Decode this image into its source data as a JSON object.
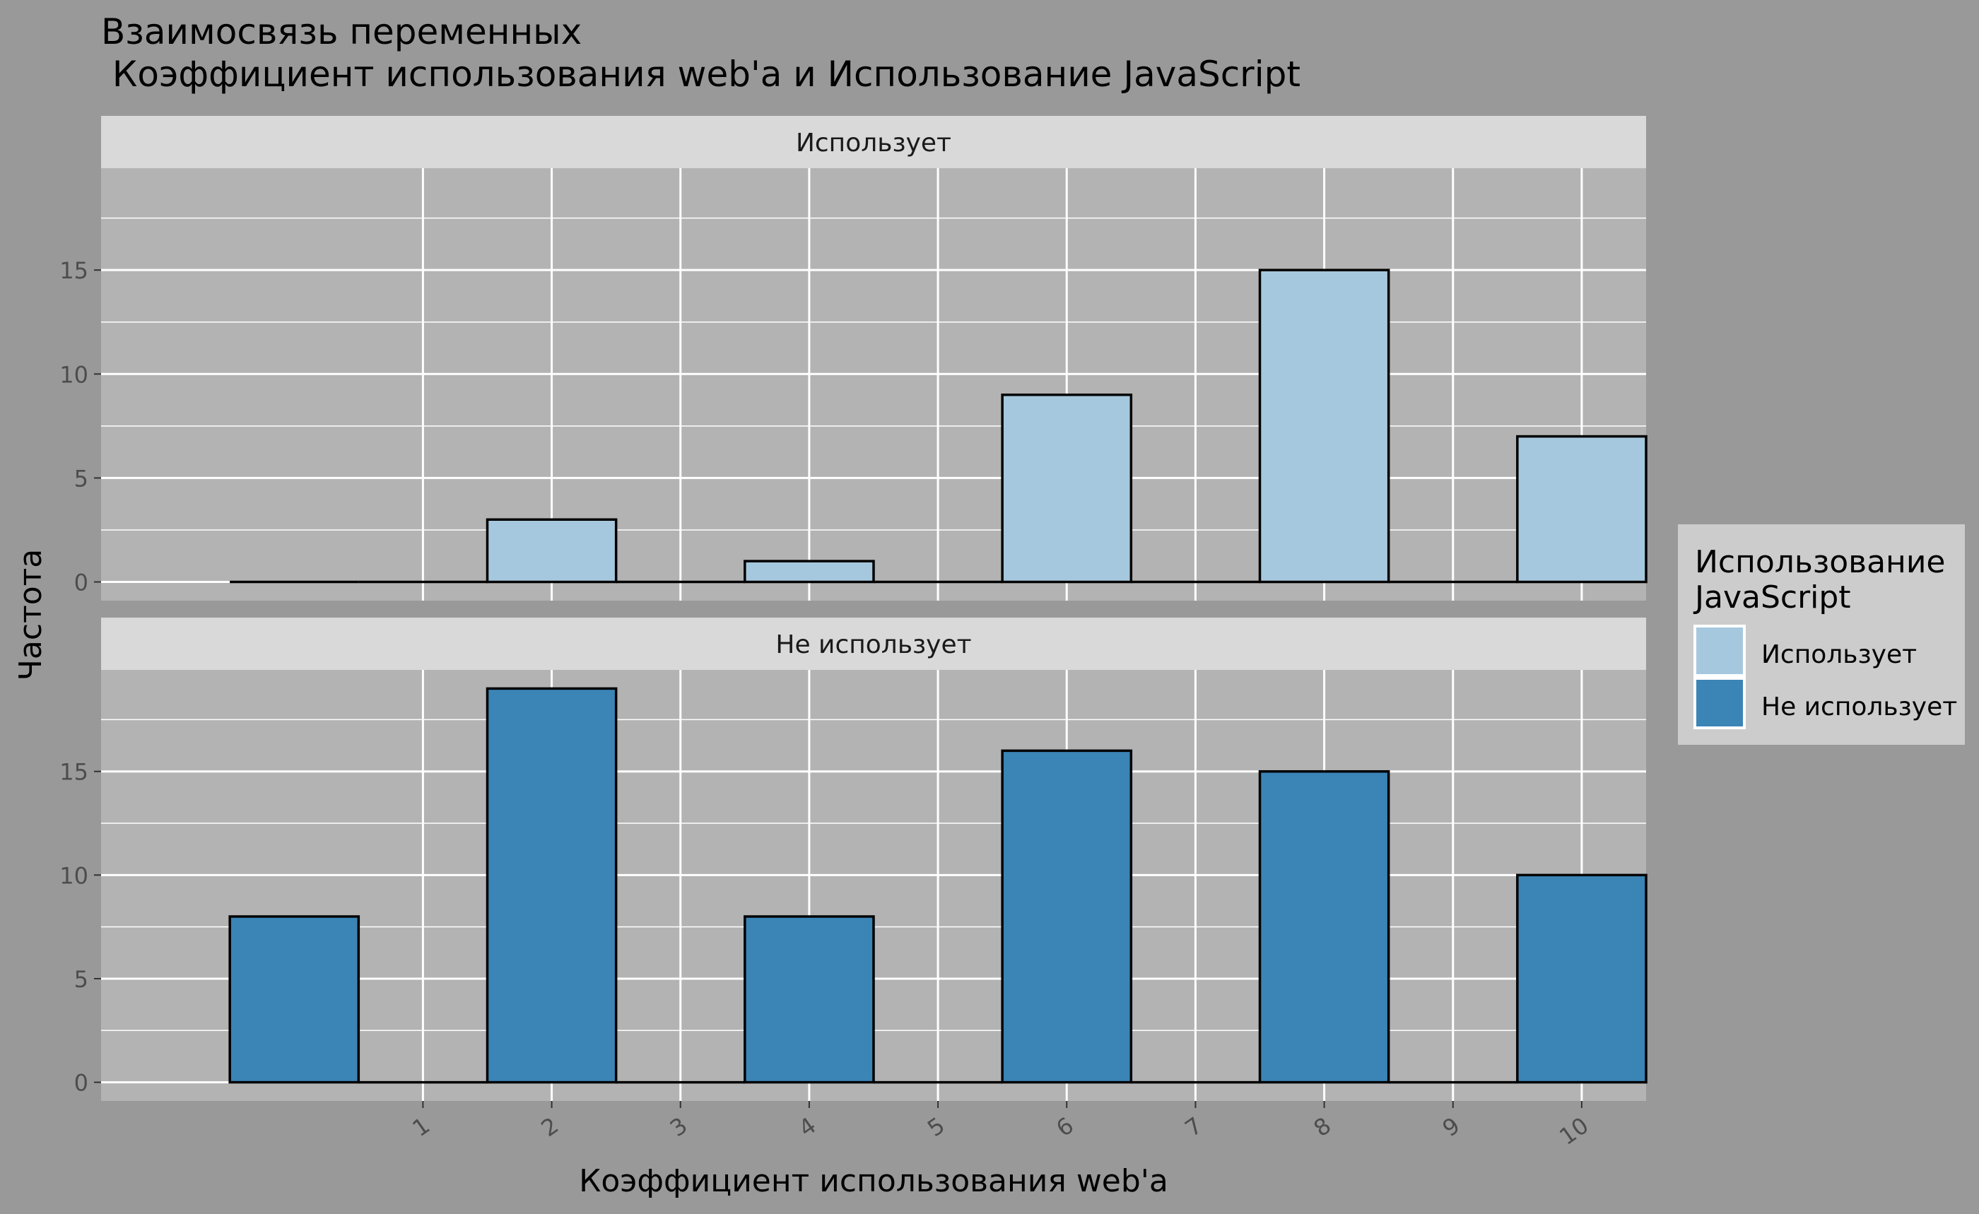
{
  "chart_data": {
    "type": "bar",
    "title_line1": "Взаимосвязь переменных",
    "title_line2": " Коэффициент использования web'a и Использование JavaScript",
    "xlabel": "Коэффициент использования web'a",
    "ylabel": "Частота",
    "x_ticks": [
      "1",
      "2",
      "3",
      "4",
      "5",
      "6",
      "7",
      "8",
      "9",
      "10"
    ],
    "y_ticks": [
      "0",
      "5",
      "10",
      "15"
    ],
    "ylim": [
      -0.9,
      19.9
    ],
    "grid": true,
    "legend": {
      "title_line1": "Использование",
      "title_line2": "JavaScript",
      "position": "right",
      "entries": [
        "Использует",
        "Не использует"
      ]
    },
    "facets": [
      {
        "label": "Использует",
        "color": "#a6c8de",
        "bins": [
          {
            "x": 0,
            "value": 0
          },
          {
            "x": 1,
            "value": 0
          },
          {
            "x": 2,
            "value": 3
          },
          {
            "x": 3,
            "value": 0
          },
          {
            "x": 4,
            "value": 1
          },
          {
            "x": 5,
            "value": 0
          },
          {
            "x": 6,
            "value": 9
          },
          {
            "x": 7,
            "value": 0
          },
          {
            "x": 8,
            "value": 15
          },
          {
            "x": 9,
            "value": 0
          },
          {
            "x": 10,
            "value": 7
          }
        ]
      },
      {
        "label": "Не использует",
        "color": "#3b84b6",
        "bins": [
          {
            "x": 0,
            "value": 8
          },
          {
            "x": 1,
            "value": 0
          },
          {
            "x": 2,
            "value": 19
          },
          {
            "x": 3,
            "value": 0
          },
          {
            "x": 4,
            "value": 8
          },
          {
            "x": 5,
            "value": 0
          },
          {
            "x": 6,
            "value": 16
          },
          {
            "x": 7,
            "value": 0
          },
          {
            "x": 8,
            "value": 15
          },
          {
            "x": 9,
            "value": 0
          },
          {
            "x": 10,
            "value": 10
          }
        ]
      }
    ]
  }
}
